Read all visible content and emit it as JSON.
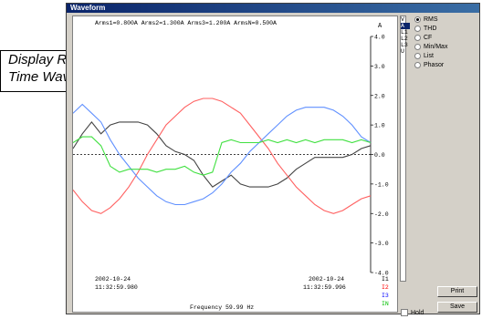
{
  "window": {
    "title": "Waveform"
  },
  "readout": "Arms1=0.800A  Arms2=1.300A  Arms3=1.200A  ArmsN=0.500A",
  "y_axis": {
    "unit": "A",
    "ticks": [
      "4.0",
      "3.0",
      "2.0",
      "1.0",
      "0.0",
      "-1.0",
      "-2.0",
      "-3.0",
      "-4.0"
    ]
  },
  "time_left": {
    "date": "2002-10-24",
    "time": "11:32:59.980"
  },
  "time_right": {
    "date": "2002-10-24",
    "time": "11:32:59.996"
  },
  "frequency": "Frequency 59.99 Hz",
  "legend": [
    "I1",
    "I2",
    "I3",
    "IN"
  ],
  "channels": [
    {
      "label": "V",
      "selected": false
    },
    {
      "label": "A",
      "selected": true
    },
    {
      "label": "L1",
      "selected": false
    },
    {
      "label": "L2",
      "selected": false
    },
    {
      "label": "L3",
      "selected": false
    },
    {
      "label": "U",
      "selected": false
    }
  ],
  "modes": [
    {
      "label": "RMS",
      "checked": true
    },
    {
      "label": "THD",
      "checked": false
    },
    {
      "label": "CF",
      "checked": false
    },
    {
      "label": "Min/Max",
      "checked": false
    },
    {
      "label": "List",
      "checked": false
    },
    {
      "label": "Phasor",
      "checked": false
    }
  ],
  "buttons": {
    "print": "Print",
    "save": "Save"
  },
  "hold_label": "Hold",
  "callout": {
    "line1": "Display Real",
    "line2": "Time Waveforms"
  },
  "colors": {
    "I1": "#000000",
    "I2": "#ff0000",
    "I3": "#0000ff",
    "IN": "#00c000"
  },
  "chart_data": {
    "type": "line",
    "ylabel": "A",
    "ylim": [
      -4,
      4
    ],
    "x": [
      0,
      0.5,
      1,
      1.5,
      2,
      2.5,
      3,
      3.5,
      4,
      4.5,
      5,
      5.5,
      6,
      6.5,
      7,
      7.5,
      8,
      8.5,
      9,
      9.5,
      10,
      10.5,
      11,
      11.5,
      12,
      12.5,
      13,
      13.5,
      14,
      14.5,
      15,
      15.5,
      16
    ],
    "series": [
      {
        "name": "I1",
        "color": "#444444",
        "values": [
          0.2,
          0.7,
          1.1,
          0.7,
          1.0,
          1.1,
          1.1,
          1.1,
          1.0,
          0.7,
          0.3,
          0.1,
          0.0,
          -0.2,
          -0.7,
          -1.1,
          -0.9,
          -0.7,
          -1.0,
          -1.1,
          -1.1,
          -1.1,
          -1.0,
          -0.8,
          -0.5,
          -0.3,
          -0.1,
          -0.1,
          -0.1,
          -0.1,
          0.0,
          0.2,
          0.3
        ]
      },
      {
        "name": "I2",
        "color": "#ff6060",
        "values": [
          -1.2,
          -1.6,
          -1.9,
          -2.0,
          -1.8,
          -1.5,
          -1.1,
          -0.6,
          0.0,
          0.5,
          1.0,
          1.3,
          1.6,
          1.8,
          1.9,
          1.9,
          1.8,
          1.6,
          1.4,
          1.0,
          0.6,
          0.2,
          -0.3,
          -0.7,
          -1.1,
          -1.4,
          -1.7,
          -1.9,
          -2.0,
          -1.9,
          -1.7,
          -1.5,
          -1.4
        ]
      },
      {
        "name": "I3",
        "color": "#6090ff",
        "values": [
          1.4,
          1.7,
          1.4,
          1.1,
          0.5,
          0.0,
          -0.4,
          -0.8,
          -1.1,
          -1.4,
          -1.6,
          -1.7,
          -1.7,
          -1.6,
          -1.5,
          -1.3,
          -1.0,
          -0.6,
          -0.3,
          0.1,
          0.4,
          0.7,
          1.0,
          1.3,
          1.5,
          1.6,
          1.6,
          1.6,
          1.5,
          1.3,
          1.0,
          0.6,
          0.4
        ]
      },
      {
        "name": "IN",
        "color": "#40e040",
        "values": [
          0.4,
          0.6,
          0.6,
          0.3,
          -0.4,
          -0.6,
          -0.5,
          -0.5,
          -0.5,
          -0.6,
          -0.5,
          -0.5,
          -0.4,
          -0.6,
          -0.7,
          -0.6,
          0.4,
          0.5,
          0.4,
          0.4,
          0.4,
          0.5,
          0.4,
          0.5,
          0.4,
          0.5,
          0.4,
          0.5,
          0.5,
          0.5,
          0.4,
          0.5,
          0.4
        ]
      }
    ]
  }
}
